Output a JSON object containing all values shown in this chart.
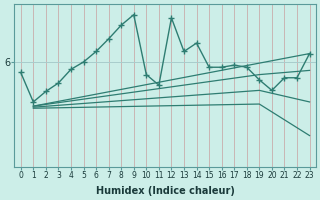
{
  "xlabel": "Humidex (Indice chaleur)",
  "ylabel": "",
  "bg_color": "#cceee8",
  "line_color": "#2e7d72",
  "grid_color_v": "#c0ddd8",
  "grid_color_h": "#a8cccc",
  "xlim": [
    -0.5,
    23.5
  ],
  "ylim": [
    5.0,
    6.55
  ],
  "yticks": [
    6
  ],
  "xticks": [
    0,
    1,
    2,
    3,
    4,
    5,
    6,
    7,
    8,
    9,
    10,
    11,
    12,
    13,
    14,
    15,
    16,
    17,
    18,
    19,
    20,
    21,
    22,
    23
  ],
  "series_marked": {
    "x": [
      0,
      1,
      2,
      3,
      4,
      5,
      6,
      7,
      8,
      9,
      10,
      11,
      12,
      13,
      14,
      15,
      16,
      17,
      18,
      19,
      20,
      21,
      22,
      23
    ],
    "y": [
      5.9,
      5.62,
      5.72,
      5.8,
      5.93,
      6.0,
      6.1,
      6.22,
      6.35,
      6.45,
      5.88,
      5.78,
      6.42,
      6.1,
      6.18,
      5.95,
      5.95,
      5.97,
      5.95,
      5.83,
      5.73,
      5.85,
      5.85,
      6.08
    ]
  },
  "series_smooth": [
    {
      "x": [
        1,
        23
      ],
      "y": [
        5.58,
        6.08
      ]
    },
    {
      "x": [
        1,
        19,
        23
      ],
      "y": [
        5.58,
        5.88,
        5.92
      ]
    },
    {
      "x": [
        1,
        19,
        23
      ],
      "y": [
        5.57,
        5.73,
        5.62
      ]
    },
    {
      "x": [
        1,
        19,
        23
      ],
      "y": [
        5.56,
        5.6,
        5.3
      ]
    }
  ]
}
